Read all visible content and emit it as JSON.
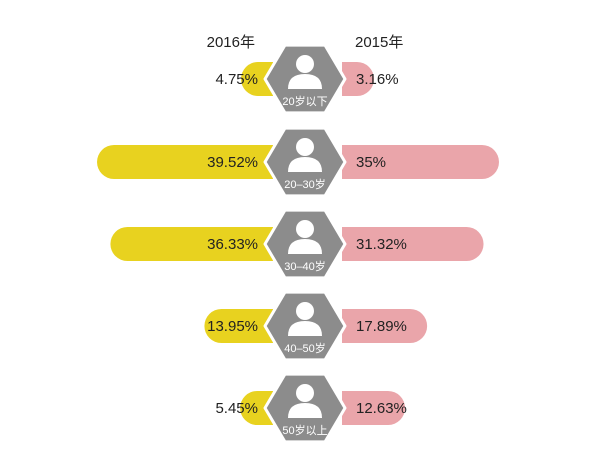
{
  "chart_data": {
    "type": "bar",
    "layout": "butterfly",
    "legend_placement": "top",
    "series": [
      {
        "name": "2016年",
        "side": "left",
        "color": "#e8d21f",
        "values": [
          4.75,
          39.52,
          36.33,
          13.95,
          5.45
        ],
        "labels": [
          "4.75%",
          "39.52%",
          "36.33%",
          "13.95%",
          "5.45%"
        ]
      },
      {
        "name": "2015年",
        "side": "right",
        "color": "#eaa5aa",
        "values": [
          3.16,
          35,
          31.32,
          17.89,
          12.63
        ],
        "labels": [
          "3.16%",
          "35%",
          "31.32%",
          "17.89%",
          "12.63%"
        ]
      }
    ],
    "categories": [
      "20岁以下",
      "20–30岁",
      "30–40岁",
      "40–50岁",
      "50岁以上"
    ],
    "unit": "%",
    "icon": "person-icon",
    "badge_color": "#8c8c8c"
  }
}
